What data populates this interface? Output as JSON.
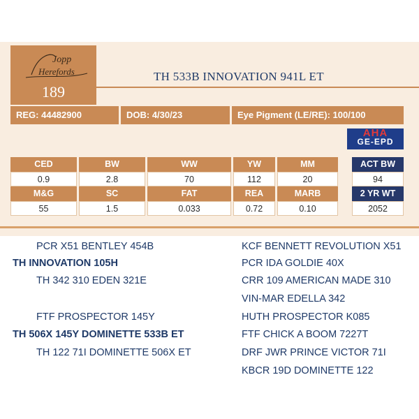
{
  "logo": {
    "farm_script_top": "Jopp",
    "farm_script_bottom": "Herefords",
    "lot_number": "189"
  },
  "animal_name": "TH 533B INNOVATION 941L ET",
  "info": {
    "reg": "REG: 44482900",
    "dob": "DOB: 4/30/23",
    "eye": "Eye Pigment (LE/RE): 100/100"
  },
  "aha_logo": {
    "top": "AHA",
    "bottom": "GE-EPD"
  },
  "epd_row1": {
    "headers": [
      "CED",
      "BW",
      "WW",
      "YW",
      "MM"
    ],
    "values": [
      "0.9",
      "2.8",
      "70",
      "112",
      "20"
    ]
  },
  "epd_row2": {
    "headers": [
      "M&G",
      "SC",
      "FAT",
      "REA",
      "MARB"
    ],
    "values": [
      "55",
      "1.5",
      "0.033",
      "0.72",
      "0.10"
    ]
  },
  "act": {
    "bw_label": "ACT BW",
    "bw_value": "94",
    "wt_label": "2 YR WT",
    "wt_value": "2052"
  },
  "pedigree_left": [
    "PCR X51 BENTLEY 454B",
    "TH INNOVATION 105H",
    "TH 342 310 EDEN 321E",
    "FTF PROSPECTOR 145Y",
    "TH 506X 145Y DOMINETTE 533B ET",
    "TH 122 71I DOMINETTE 506X ET"
  ],
  "pedigree_right": [
    "KCF BENNETT REVOLUTION X51",
    "PCR IDA GOLDIE 40X",
    "CRR 109 AMERICAN MADE 310",
    "VIN-MAR EDELLA 342",
    "HUTH PROSPECTOR K085",
    "FTF CHICK A BOOM 7227T",
    "DRF JWR PRINCE VICTOR 71I",
    "KBCR 19D DOMINETTE 122"
  ],
  "colors": {
    "tan": "#c98a55",
    "navy": "#26386a",
    "text": "#1f3a68"
  }
}
